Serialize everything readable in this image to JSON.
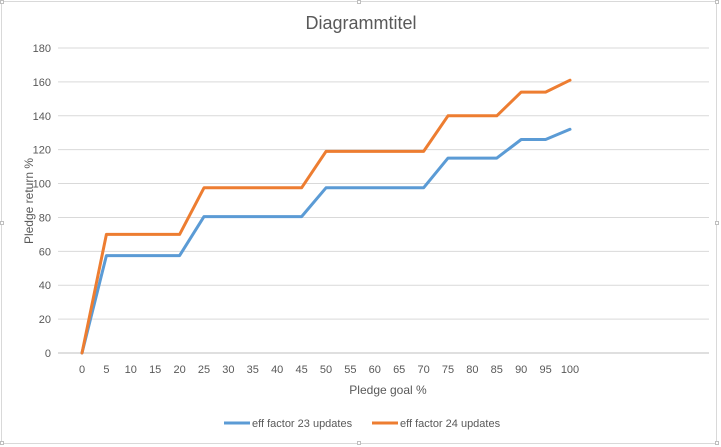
{
  "chart_data": {
    "type": "line",
    "title": "Diagrammtitel",
    "xlabel": "Pledge goal %",
    "ylabel": "Pledge return %",
    "x": [
      0,
      5,
      10,
      15,
      20,
      25,
      30,
      35,
      40,
      45,
      50,
      55,
      60,
      65,
      70,
      75,
      80,
      85,
      90,
      95,
      100
    ],
    "x_tick_labels": [
      "0",
      "5",
      "10",
      "15",
      "20",
      "25",
      "30",
      "35",
      "40",
      "45",
      "50",
      "55",
      "60",
      "65",
      "70",
      "75",
      "80",
      "85",
      "90",
      "95",
      "100"
    ],
    "ylim": [
      0,
      180
    ],
    "y_ticks": [
      0,
      20,
      40,
      60,
      80,
      100,
      120,
      140,
      160,
      180
    ],
    "y_tick_labels": [
      "0",
      "20",
      "40",
      "60",
      "80",
      "100",
      "120",
      "140",
      "160",
      "180"
    ],
    "grid": true,
    "legend_position": "bottom",
    "series": [
      {
        "name": "eff factor 23 updates",
        "color": "#5b9bd5",
        "values": [
          0,
          57.5,
          57.5,
          57.5,
          57.5,
          80.5,
          80.5,
          80.5,
          80.5,
          80.5,
          97.5,
          97.5,
          97.5,
          97.5,
          97.5,
          115,
          115,
          115,
          126,
          126,
          132
        ]
      },
      {
        "name": "eff factor 24 updates",
        "color": "#ed7d31",
        "values": [
          0,
          70,
          70,
          70,
          70,
          97.5,
          97.5,
          97.5,
          97.5,
          97.5,
          119,
          119,
          119,
          119,
          119,
          140,
          140,
          140,
          154,
          154,
          161
        ]
      }
    ]
  }
}
